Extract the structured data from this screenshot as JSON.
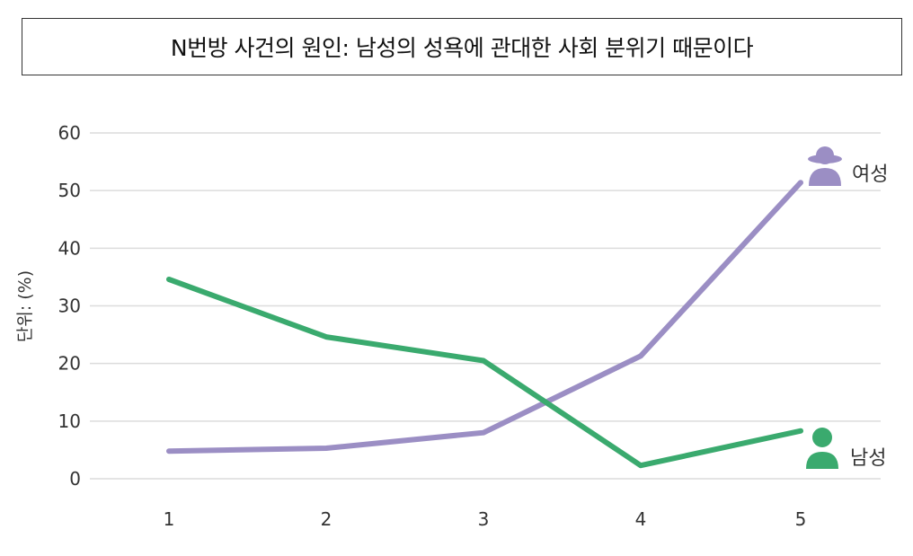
{
  "title": "N번방 사건의 원인: 남성의 성욕에 관대한 사회 분위기 때문이다",
  "chart_data": {
    "type": "line",
    "title": "N번방 사건의 원인: 남성의 성욕에 관대한 사회 분위기 때문이다",
    "xlabel": "",
    "ylabel": "단위: (%)",
    "categories": [
      "1",
      "2",
      "3",
      "4",
      "5"
    ],
    "y_ticks": [
      "0",
      "10",
      "20",
      "30",
      "40",
      "50",
      "60"
    ],
    "ylim": [
      0,
      60
    ],
    "grid": true,
    "series": [
      {
        "name": "여성",
        "color": "#9b8ec4",
        "icon": "woman-icon",
        "values": [
          4.8,
          5.3,
          8.0,
          21.3,
          51.4
        ]
      },
      {
        "name": "남성",
        "color": "#3aaa6e",
        "icon": "man-icon",
        "values": [
          34.6,
          24.6,
          20.5,
          2.3,
          8.3
        ]
      }
    ]
  }
}
